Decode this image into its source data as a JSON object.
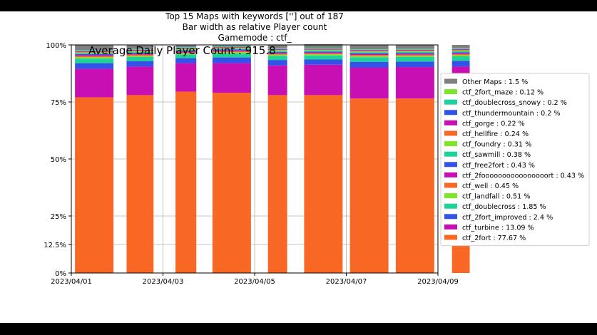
{
  "chart_data": {
    "type": "bar",
    "stacked": true,
    "title_lines": [
      "Top 15 Maps with keywords [''] out of 187",
      "Bar width as relative Player count",
      "Gamemode : ctf_"
    ],
    "annotation": "Average Daily Player Count : 915.8",
    "xlabel": "",
    "ylabel": "",
    "x_ticks": [
      "2023/04/01",
      "2023/04/03",
      "2023/04/05",
      "2023/04/07",
      "2023/04/09"
    ],
    "y_ticks": [
      "0%",
      "12.5%",
      "25%",
      "50%",
      "75%",
      "100%"
    ],
    "y_tick_values": [
      0,
      12.5,
      25,
      50,
      75,
      100
    ],
    "ylim": [
      0,
      100
    ],
    "xlim": [
      "2023/04/01",
      "2023/04/09"
    ],
    "grid": true,
    "legend_position": "right",
    "legend": [
      {
        "label": "Other Maps : 1.5 %",
        "color": "#808080"
      },
      {
        "label": "ctf_2fort_maze : 0.12 %",
        "color": "#7de52a"
      },
      {
        "label": "ctf_doublecross_snowy : 0.2 %",
        "color": "#1dd39a"
      },
      {
        "label": "ctf_thundermountain : 0.2 %",
        "color": "#3352e8"
      },
      {
        "label": "ctf_gorge : 0.22 %",
        "color": "#c70fb4"
      },
      {
        "label": "ctf_hellfire : 0.24 %",
        "color": "#f96724"
      },
      {
        "label": "ctf_foundry : 0.31 %",
        "color": "#7de52a"
      },
      {
        "label": "ctf_sawmill : 0.38 %",
        "color": "#1dd39a"
      },
      {
        "label": "ctf_free2fort : 0.43 %",
        "color": "#3352e8"
      },
      {
        "label": "ctf_2foooooooooooooooort : 0.43 %",
        "color": "#c70fb4"
      },
      {
        "label": "ctf_well : 0.45 %",
        "color": "#f96724"
      },
      {
        "label": "ctf_landfall : 0.51 %",
        "color": "#7de52a"
      },
      {
        "label": "ctf_doublecross : 1.85 %",
        "color": "#1dd39a"
      },
      {
        "label": "ctf_2fort_improved : 2.4 %",
        "color": "#3352e8"
      },
      {
        "label": "ctf_turbine : 13.09 %",
        "color": "#c70fb4"
      },
      {
        "label": "ctf_2fort : 77.67 %",
        "color": "#f96724"
      }
    ],
    "days": [
      "2023/04/01",
      "2023/04/02",
      "2023/04/03",
      "2023/04/04",
      "2023/04/05",
      "2023/04/06",
      "2023/04/07",
      "2023/04/08",
      "2023/04/09"
    ],
    "bar_days": [
      "2023/04/01",
      "2023/04/02",
      "2023/04/03",
      "2023/04/04",
      "2023/04/05",
      "2023/04/06",
      "2023/04/07",
      "2023/04/08",
      "2023/04/09"
    ],
    "bar_relative_player_count": [
      1.0,
      0.7,
      0.54,
      1.0,
      0.5,
      1.0,
      1.0,
      1.0,
      0.46
    ],
    "series_order_bottom_to_top": [
      "ctf_2fort",
      "ctf_turbine",
      "ctf_2fort_improved",
      "ctf_doublecross",
      "ctf_landfall",
      "ctf_well",
      "ctf_2foooooooooooooooort",
      "ctf_free2fort",
      "ctf_sawmill",
      "ctf_foundry",
      "ctf_hellfire",
      "ctf_gorge",
      "ctf_thundermountain",
      "ctf_doublecross_snowy",
      "ctf_2fort_maze",
      "Other Maps"
    ],
    "series_colors": [
      "#f96724",
      "#c70fb4",
      "#3352e8",
      "#1dd39a",
      "#7de52a",
      "#f96724",
      "#c70fb4",
      "#3352e8",
      "#1dd39a",
      "#7de52a",
      "#f96724",
      "#c70fb4",
      "#3352e8",
      "#1dd39a",
      "#7de52a",
      "#808080"
    ],
    "bars": [
      [
        77,
        12.5,
        2.5,
        2.0,
        0.6,
        0.5,
        0.5,
        0.4,
        0.4,
        0.3,
        0.3,
        0.2,
        0.2,
        0.2,
        0.1,
        2.3
      ],
      [
        78,
        12.5,
        2.4,
        1.8,
        0.5,
        0.5,
        0.4,
        0.4,
        0.4,
        0.3,
        0.3,
        0.2,
        0.2,
        0.2,
        0.1,
        1.8
      ],
      [
        79.5,
        12.5,
        2.2,
        1.6,
        0.5,
        0.4,
        0.4,
        0.4,
        0.3,
        0.3,
        0.2,
        0.2,
        0.2,
        0.2,
        0.1,
        1.0
      ],
      [
        79,
        13,
        2.5,
        1.8,
        0.5,
        0.4,
        0.4,
        0.4,
        0.4,
        0.3,
        0.2,
        0.2,
        0.2,
        0.2,
        0.1,
        0.4
      ],
      [
        78,
        13,
        2.4,
        1.8,
        0.5,
        0.4,
        0.4,
        0.4,
        0.4,
        0.3,
        0.2,
        0.2,
        0.2,
        0.2,
        0.1,
        1.5
      ],
      [
        78,
        13.3,
        2.3,
        1.8,
        0.5,
        0.4,
        0.4,
        0.4,
        0.4,
        0.3,
        0.2,
        0.2,
        0.2,
        0.2,
        0.1,
        1.6
      ],
      [
        76.5,
        13.5,
        2.6,
        2.0,
        0.5,
        0.5,
        0.4,
        0.4,
        0.4,
        0.3,
        0.3,
        0.2,
        0.2,
        0.2,
        0.1,
        2.0
      ],
      [
        76.5,
        13.8,
        2.4,
        2.0,
        0.5,
        0.5,
        0.4,
        0.4,
        0.4,
        0.3,
        0.3,
        0.2,
        0.2,
        0.2,
        0.1,
        1.8
      ],
      [
        76.5,
        14,
        2.5,
        2.0,
        0.5,
        0.5,
        0.4,
        0.4,
        0.4,
        0.3,
        0.3,
        0.2,
        0.2,
        0.2,
        0.1,
        1.5
      ]
    ]
  }
}
